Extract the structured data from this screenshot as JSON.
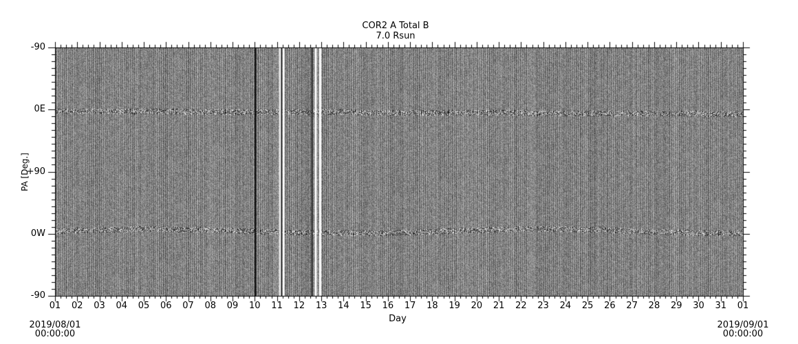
{
  "chart_data": {
    "type": "heatmap",
    "title": "COR2 A Total B",
    "subtitle": "7.0 Rsun",
    "xlabel": "Day",
    "ylabel": "PA [Deg.]",
    "xticks": [
      "01",
      "02",
      "03",
      "04",
      "05",
      "06",
      "07",
      "08",
      "09",
      "10",
      "11",
      "12",
      "13",
      "14",
      "15",
      "16",
      "17",
      "18",
      "19",
      "20",
      "21",
      "22",
      "23",
      "24",
      "25",
      "26",
      "27",
      "28",
      "29",
      "30",
      "31",
      "01"
    ],
    "yticks": [
      "-90",
      "0E",
      "+90",
      "0W",
      "-90"
    ],
    "ylim_deg": [
      -90,
      270
    ],
    "xrange_days": [
      1,
      32
    ],
    "start_date": "2019/08/01",
    "start_time": "00:00:00",
    "end_date": "2019/09/01",
    "end_time": "00:00:00",
    "colormap": "grayscale",
    "features": {
      "bright_bands_pa": [
        "0E",
        "0W"
      ],
      "data_gaps_dark_day": [
        10.0
      ],
      "data_gaps_white_day": [
        11.1,
        11.25,
        12.7,
        12.9
      ]
    }
  }
}
